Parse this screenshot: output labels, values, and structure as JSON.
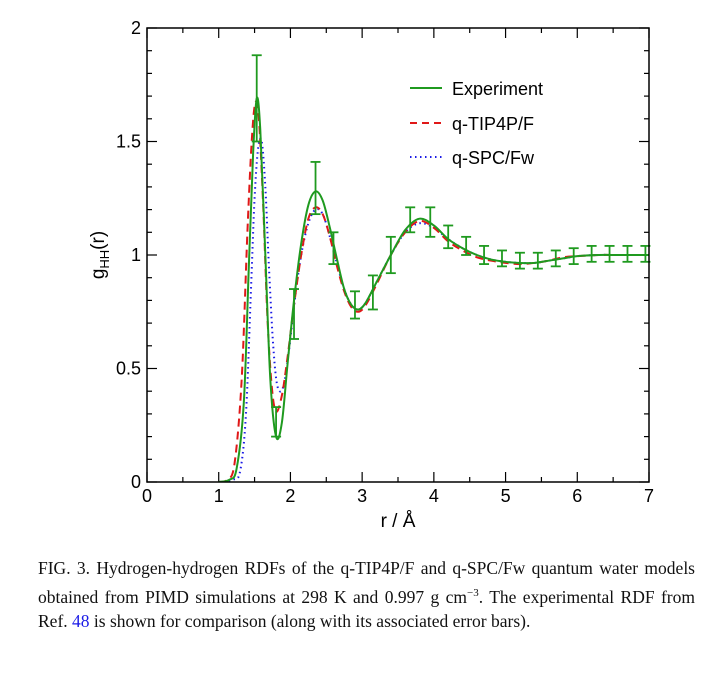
{
  "chart_data": {
    "type": "line",
    "xlabel": "r / Å",
    "ylabel_main": "g",
    "ylabel_sub": "HH",
    "ylabel_arg": "(r)",
    "xlim": [
      0,
      7
    ],
    "ylim": [
      0,
      2
    ],
    "xticks": [
      0,
      1,
      2,
      3,
      4,
      5,
      6,
      7
    ],
    "xtick_labels": [
      "0",
      "1",
      "2",
      "3",
      "4",
      "5",
      "6",
      "7"
    ],
    "yticks": [
      0,
      0.5,
      1,
      1.5,
      2
    ],
    "ytick_labels": [
      "0",
      "0.5",
      "1",
      "1.5",
      "2"
    ],
    "grid": false,
    "legend_position": "top-right",
    "series": [
      {
        "name": "Experiment",
        "color": "#1f9a1f",
        "style": "solid",
        "points": [
          [
            1.0,
            0.0
          ],
          [
            1.15,
            0.01
          ],
          [
            1.25,
            0.06
          ],
          [
            1.35,
            0.35
          ],
          [
            1.42,
            0.95
          ],
          [
            1.48,
            1.45
          ],
          [
            1.53,
            1.69
          ],
          [
            1.58,
            1.55
          ],
          [
            1.65,
            1.0
          ],
          [
            1.72,
            0.45
          ],
          [
            1.8,
            0.2
          ],
          [
            1.88,
            0.26
          ],
          [
            1.96,
            0.52
          ],
          [
            2.05,
            0.8
          ],
          [
            2.15,
            1.05
          ],
          [
            2.25,
            1.22
          ],
          [
            2.35,
            1.28
          ],
          [
            2.45,
            1.24
          ],
          [
            2.55,
            1.12
          ],
          [
            2.65,
            0.98
          ],
          [
            2.75,
            0.85
          ],
          [
            2.85,
            0.78
          ],
          [
            2.95,
            0.76
          ],
          [
            3.05,
            0.79
          ],
          [
            3.2,
            0.88
          ],
          [
            3.4,
            1.0
          ],
          [
            3.6,
            1.11
          ],
          [
            3.8,
            1.16
          ],
          [
            4.0,
            1.13
          ],
          [
            4.2,
            1.07
          ],
          [
            4.4,
            1.03
          ],
          [
            4.6,
            1.0
          ],
          [
            4.8,
            0.98
          ],
          [
            5.0,
            0.97
          ],
          [
            5.2,
            0.965
          ],
          [
            5.4,
            0.965
          ],
          [
            5.6,
            0.975
          ],
          [
            5.8,
            0.985
          ],
          [
            6.0,
            0.995
          ],
          [
            6.3,
            1.0
          ],
          [
            6.6,
            1.0
          ],
          [
            7.0,
            1.0
          ]
        ]
      },
      {
        "name": "q-TIP4P/F",
        "color": "#e01818",
        "style": "dashed",
        "points": [
          [
            1.0,
            0.0
          ],
          [
            1.12,
            0.01
          ],
          [
            1.22,
            0.08
          ],
          [
            1.32,
            0.45
          ],
          [
            1.4,
            1.1
          ],
          [
            1.46,
            1.5
          ],
          [
            1.51,
            1.67
          ],
          [
            1.56,
            1.6
          ],
          [
            1.62,
            1.22
          ],
          [
            1.68,
            0.72
          ],
          [
            1.74,
            0.42
          ],
          [
            1.8,
            0.31
          ],
          [
            1.88,
            0.38
          ],
          [
            1.96,
            0.55
          ],
          [
            2.05,
            0.78
          ],
          [
            2.15,
            1.0
          ],
          [
            2.25,
            1.16
          ],
          [
            2.35,
            1.21
          ],
          [
            2.45,
            1.18
          ],
          [
            2.55,
            1.08
          ],
          [
            2.65,
            0.95
          ],
          [
            2.75,
            0.84
          ],
          [
            2.85,
            0.77
          ],
          [
            2.95,
            0.75
          ],
          [
            3.05,
            0.78
          ],
          [
            3.2,
            0.87
          ],
          [
            3.4,
            1.0
          ],
          [
            3.6,
            1.1
          ],
          [
            3.8,
            1.15
          ],
          [
            4.0,
            1.12
          ],
          [
            4.2,
            1.06
          ],
          [
            4.4,
            1.02
          ],
          [
            4.6,
            0.99
          ],
          [
            4.8,
            0.975
          ],
          [
            5.0,
            0.965
          ],
          [
            5.2,
            0.96
          ],
          [
            5.4,
            0.965
          ],
          [
            5.6,
            0.975
          ],
          [
            5.8,
            0.99
          ],
          [
            6.0,
            0.995
          ],
          [
            6.3,
            1.0
          ],
          [
            6.6,
            1.0
          ],
          [
            7.0,
            1.0
          ]
        ]
      },
      {
        "name": "q-SPC/Fw",
        "color": "#1a1ae6",
        "style": "dotted",
        "points": [
          [
            1.0,
            0.0
          ],
          [
            1.2,
            0.01
          ],
          [
            1.3,
            0.05
          ],
          [
            1.38,
            0.3
          ],
          [
            1.45,
            0.85
          ],
          [
            1.5,
            1.25
          ],
          [
            1.55,
            1.47
          ],
          [
            1.6,
            1.5
          ],
          [
            1.65,
            1.3
          ],
          [
            1.7,
            0.95
          ],
          [
            1.76,
            0.6
          ],
          [
            1.82,
            0.42
          ],
          [
            1.9,
            0.42
          ],
          [
            1.98,
            0.58
          ],
          [
            2.06,
            0.8
          ],
          [
            2.15,
            1.0
          ],
          [
            2.25,
            1.14
          ],
          [
            2.35,
            1.2
          ],
          [
            2.45,
            1.18
          ],
          [
            2.55,
            1.08
          ],
          [
            2.65,
            0.96
          ],
          [
            2.75,
            0.85
          ],
          [
            2.85,
            0.78
          ],
          [
            2.95,
            0.76
          ],
          [
            3.05,
            0.79
          ],
          [
            3.2,
            0.88
          ],
          [
            3.4,
            1.0
          ],
          [
            3.6,
            1.1
          ],
          [
            3.8,
            1.14
          ],
          [
            4.0,
            1.12
          ],
          [
            4.2,
            1.07
          ],
          [
            4.4,
            1.03
          ],
          [
            4.6,
            1.0
          ],
          [
            4.8,
            0.98
          ],
          [
            5.0,
            0.97
          ],
          [
            5.2,
            0.965
          ],
          [
            5.4,
            0.965
          ],
          [
            5.6,
            0.975
          ],
          [
            5.8,
            0.985
          ],
          [
            6.0,
            0.995
          ],
          [
            6.3,
            1.0
          ],
          [
            6.6,
            1.0
          ],
          [
            7.0,
            1.0
          ]
        ]
      }
    ],
    "error_bars": {
      "series": "Experiment",
      "color": "#1f9a1f",
      "points": [
        {
          "x": 1.53,
          "low": 1.5,
          "high": 1.88
        },
        {
          "x": 1.8,
          "low": 0.2,
          "high": 0.33
        },
        {
          "x": 2.05,
          "low": 0.63,
          "high": 0.85
        },
        {
          "x": 2.35,
          "low": 1.18,
          "high": 1.41
        },
        {
          "x": 2.6,
          "low": 0.96,
          "high": 1.1
        },
        {
          "x": 2.9,
          "low": 0.72,
          "high": 0.84
        },
        {
          "x": 3.15,
          "low": 0.76,
          "high": 0.91
        },
        {
          "x": 3.4,
          "low": 0.92,
          "high": 1.08
        },
        {
          "x": 3.67,
          "low": 1.1,
          "high": 1.21
        },
        {
          "x": 3.95,
          "low": 1.08,
          "high": 1.21
        },
        {
          "x": 4.2,
          "low": 1.03,
          "high": 1.13
        },
        {
          "x": 4.45,
          "low": 1.0,
          "high": 1.08
        },
        {
          "x": 4.7,
          "low": 0.96,
          "high": 1.04
        },
        {
          "x": 4.95,
          "low": 0.95,
          "high": 1.02
        },
        {
          "x": 5.2,
          "low": 0.94,
          "high": 1.01
        },
        {
          "x": 5.45,
          "low": 0.94,
          "high": 1.01
        },
        {
          "x": 5.7,
          "low": 0.95,
          "high": 1.02
        },
        {
          "x": 5.95,
          "low": 0.96,
          "high": 1.03
        },
        {
          "x": 6.2,
          "low": 0.97,
          "high": 1.04
        },
        {
          "x": 6.45,
          "low": 0.97,
          "high": 1.04
        },
        {
          "x": 6.7,
          "low": 0.97,
          "high": 1.04
        },
        {
          "x": 6.95,
          "low": 0.97,
          "high": 1.04
        }
      ]
    }
  },
  "caption": {
    "text_before_ref": "FIG. 3. Hydrogen-hydrogen RDFs of the q-TIP4P/F and q-SPC/Fw quantum water models obtained from PIMD simulations at 298 K and 0.997 g cm",
    "superscript": "−3",
    "text_mid": ". The experimental RDF from Ref. ",
    "ref_number": "48",
    "text_after_ref": " is shown for comparison (along with its associated error bars)."
  }
}
